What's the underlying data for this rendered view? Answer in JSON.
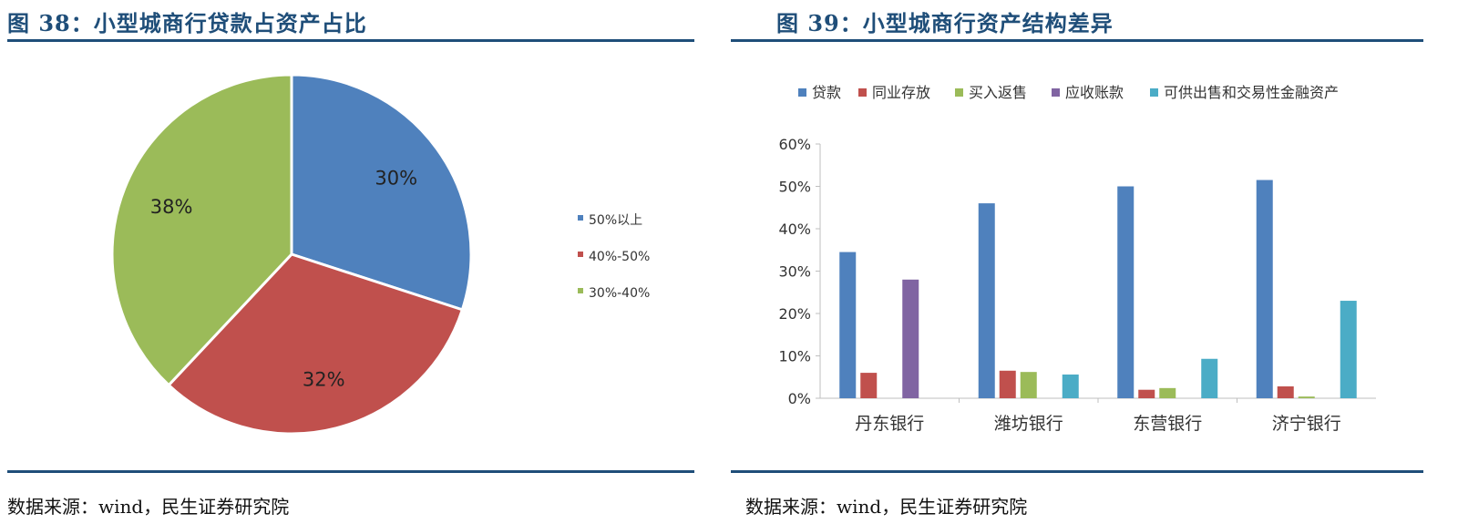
{
  "left": {
    "title": "图 38：小型城商行贷款占资产占比",
    "source": "数据来源：wind，民生证券研究院"
  },
  "right": {
    "title": "图 39：小型城商行资产结构差异",
    "source": "数据来源：wind，民生证券研究院"
  },
  "chart_data": [
    {
      "type": "pie",
      "title": "",
      "slices": [
        {
          "label": "50%以上",
          "value": 30,
          "display": "30%",
          "color": "#4f81bd"
        },
        {
          "label": "40%-50%",
          "value": 32,
          "display": "32%",
          "color": "#c0504d"
        },
        {
          "label": "30%-40%",
          "value": 38,
          "display": "38%",
          "color": "#9bbb59"
        }
      ],
      "legend_position": "right"
    },
    {
      "type": "bar",
      "title": "",
      "xlabel": "",
      "ylabel": "",
      "categories": [
        "丹东银行",
        "潍坊银行",
        "东营银行",
        "济宁银行"
      ],
      "series": [
        {
          "name": "贷款",
          "color": "#4f81bd",
          "values": [
            34.5,
            46,
            50,
            51.5
          ]
        },
        {
          "name": "同业存放",
          "color": "#c0504d",
          "values": [
            6,
            6.5,
            2,
            2.8
          ]
        },
        {
          "name": "买入返售",
          "color": "#9bbb59",
          "values": [
            0,
            6.2,
            2.4,
            0.4
          ]
        },
        {
          "name": "应收账款",
          "color": "#8064a2",
          "values": [
            28,
            0,
            0,
            0
          ]
        },
        {
          "name": "可供出售和交易性金融资产",
          "color": "#4bacc6",
          "values": [
            0,
            5.6,
            9.3,
            23
          ]
        }
      ],
      "ylim": [
        0,
        60
      ],
      "yticks": [
        "0%",
        "10%",
        "20%",
        "30%",
        "40%",
        "50%",
        "60%"
      ],
      "grid": false,
      "legend_position": "top"
    }
  ]
}
